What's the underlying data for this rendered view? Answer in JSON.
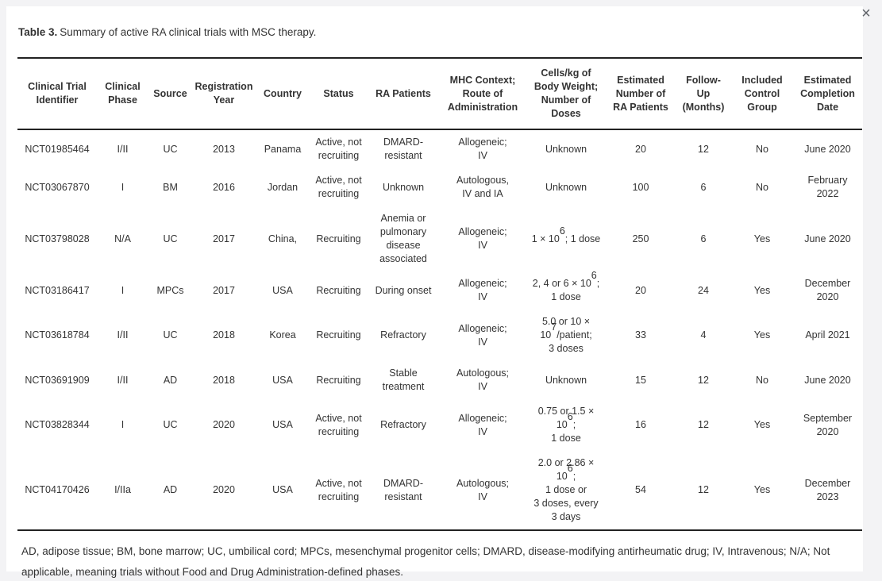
{
  "modal": {
    "close_icon": "×"
  },
  "table": {
    "title_prefix": "Table 3.",
    "title_text": "Summary of active RA clinical trials with MSC therapy.",
    "columns": [
      "Clinical Trial<br>Identifier",
      "Clinical<br>Phase",
      "Source",
      "Registration<br>Year",
      "Country",
      "Status",
      "RA Patients",
      "MHC Context;<br>Route of<br>Administration",
      "Cells/kg of<br>Body Weight;<br>Number of<br>Doses",
      "Estimated<br>Number of<br>RA Patients",
      "Follow-<br>Up<br>(Months)",
      "Included<br>Control<br>Group",
      "Estimated<br>Completion<br>Date"
    ],
    "rows": [
      [
        "NCT01985464",
        "I/II",
        "UC",
        "2013",
        "Panama",
        "Active, not<br>recruiting",
        "DMARD-<br>resistant",
        "Allogeneic;<br>IV",
        "Unknown",
        "20",
        "12",
        "No",
        "June 2020"
      ],
      [
        "NCT03067870",
        "I",
        "BM",
        "2016",
        "Jordan",
        "Active, not<br>recruiting",
        "Unknown",
        "Autologous,<br>IV and IA",
        "Unknown",
        "100",
        "6",
        "No",
        "February<br>2022"
      ],
      [
        "NCT03798028",
        "N/A",
        "UC",
        "2017",
        "China,",
        "Recruiting",
        "Anemia or<br>pulmonary<br>disease<br>associated",
        "Allogeneic;<br>IV",
        "1 × 10<sup>6</sup>; 1 dose",
        "250",
        "6",
        "Yes",
        "June 2020"
      ],
      [
        "NCT03186417",
        "I",
        "MPCs",
        "2017",
        "USA",
        "Recruiting",
        "During onset",
        "Allogeneic;<br>IV",
        "2, 4 or 6 × 10<sup>6</sup>;<br>1 dose",
        "20",
        "24",
        "Yes",
        "December<br>2020"
      ],
      [
        "NCT03618784",
        "I/II",
        "UC",
        "2018",
        "Korea",
        "Recruiting",
        "Refractory",
        "Allogeneic;<br>IV",
        "5.0 or 10 ×<br>10<sup>7</sup>/patient;<br>3 doses",
        "33",
        "4",
        "Yes",
        "April 2021"
      ],
      [
        "NCT03691909",
        "I/II",
        "AD",
        "2018",
        "USA",
        "Recruiting",
        "Stable<br>treatment",
        "Autologous;<br>IV",
        "Unknown",
        "15",
        "12",
        "No",
        "June 2020"
      ],
      [
        "NCT03828344",
        "I",
        "UC",
        "2020",
        "USA",
        "Active, not<br>recruiting",
        "Refractory",
        "Allogeneic;<br>IV",
        "0.75 or 1.5 ×<br>10<sup>6</sup>;<br>1 dose",
        "16",
        "12",
        "Yes",
        "September<br>2020"
      ],
      [
        "NCT04170426",
        "I/IIa",
        "AD",
        "2020",
        "USA",
        "Active, not<br>recruiting",
        "DMARD-<br>resistant",
        "Autologous;<br>IV",
        "2.0 or 2.86 ×<br>10<sup>6</sup>;<br>1 dose or<br>3 doses, every<br>3 days",
        "54",
        "12",
        "Yes",
        "December<br>2023"
      ]
    ],
    "footnote": "AD, adipose tissue; BM, bone marrow; UC, umbilical cord; MPCs, mesenchymal progenitor cells; DMARD, disease-modifying antirheumatic drug; IV, Intravenous; N/A; Not applicable, meaning trials without Food and Drug Administration-defined phases."
  }
}
